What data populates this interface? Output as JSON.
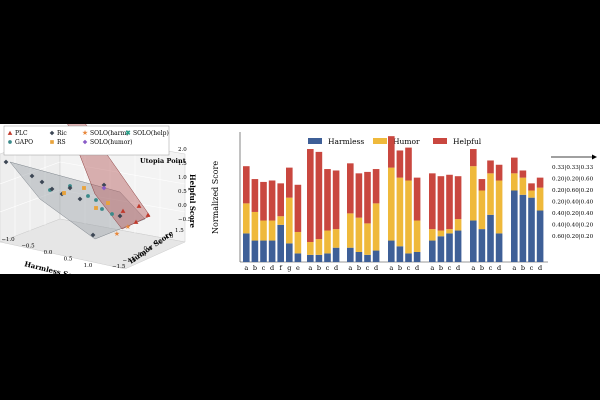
{
  "chart_data": [
    {
      "type": "scatter",
      "title": "",
      "xlabel": "Harmless Score",
      "ylabel": "Humor Score",
      "zlabel": "Helpful Score",
      "xticks": [
        "−1.0",
        "−0.5",
        "0.0",
        "0.5",
        "1.0"
      ],
      "yticks": [
        "−1.5",
        "−1.0",
        "−0.5",
        "0.0",
        "0.5",
        "1.0",
        "1.5"
      ],
      "zticks": [
        "−0.5",
        "0.0",
        "0.5",
        "1.0",
        "1.5",
        "2.0"
      ],
      "annotation": "Utopia Point",
      "legend": [
        {
          "label": "PLC",
          "color": "#c0392b",
          "marker": "triangle"
        },
        {
          "label": "GAPO",
          "color": "#3a8a8a",
          "marker": "circle"
        },
        {
          "label": "Ric",
          "color": "#3c4654",
          "marker": "diamond"
        },
        {
          "label": "RS",
          "color": "#e8a33c",
          "marker": "square"
        },
        {
          "label": "SOLO(harm)",
          "color": "#e8883c",
          "marker": "star"
        },
        {
          "label": "SOLO(humor)",
          "color": "#8a5cc8",
          "marker": "diamond"
        },
        {
          "label": "SOLO(help)",
          "color": "#2aa08a",
          "marker": "x"
        }
      ]
    },
    {
      "type": "bar",
      "stacked": true,
      "ylabel": "Normalized Score",
      "legend": [
        "Harmless",
        "Humor",
        "Helpful"
      ],
      "colors": {
        "Harmless": "#3e5f97",
        "Humor": "#efb93b",
        "Helpful": "#c9473f"
      },
      "groups": [
        {
          "categories": [
            "a",
            "b",
            "c",
            "d",
            "f",
            "g",
            "e"
          ],
          "harmless": [
            0.2,
            0.15,
            0.15,
            0.15,
            0.26,
            0.13,
            0.06
          ],
          "humor": [
            0.21,
            0.2,
            0.14,
            0.14,
            0.06,
            0.32,
            0.15
          ],
          "helpful": [
            0.26,
            0.23,
            0.27,
            0.28,
            0.23,
            0.21,
            0.33
          ]
        },
        {
          "categories": [
            "a",
            "b",
            "c",
            "d"
          ],
          "harmless": [
            0.05,
            0.05,
            0.06,
            0.1
          ],
          "humor": [
            0.09,
            0.11,
            0.16,
            0.13
          ],
          "helpful": [
            0.65,
            0.61,
            0.43,
            0.41
          ]
        },
        {
          "categories": [
            "a",
            "b",
            "c",
            "d"
          ],
          "harmless": [
            0.1,
            0.07,
            0.05,
            0.08
          ],
          "humor": [
            0.24,
            0.24,
            0.22,
            0.33
          ],
          "helpful": [
            0.35,
            0.31,
            0.36,
            0.24
          ]
        },
        {
          "categories": [
            "a",
            "b",
            "c",
            "d"
          ],
          "harmless": [
            0.15,
            0.11,
            0.06,
            0.07
          ],
          "humor": [
            0.51,
            0.48,
            0.51,
            0.22
          ],
          "helpful": [
            0.22,
            0.19,
            0.23,
            0.3
          ]
        },
        {
          "categories": [
            "a",
            "b",
            "c",
            "d"
          ],
          "harmless": [
            0.15,
            0.18,
            0.2,
            0.22
          ],
          "humor": [
            0.08,
            0.04,
            0.03,
            0.08
          ],
          "helpful": [
            0.39,
            0.38,
            0.38,
            0.3
          ]
        },
        {
          "categories": [
            "a",
            "b",
            "c",
            "d"
          ],
          "harmless": [
            0.29,
            0.23,
            0.33,
            0.2
          ],
          "humor": [
            0.38,
            0.27,
            0.29,
            0.37
          ],
          "helpful": [
            0.12,
            0.08,
            0.09,
            0.11
          ]
        },
        {
          "categories": [
            "a",
            "b",
            "c",
            "d"
          ],
          "harmless": [
            0.5,
            0.47,
            0.45,
            0.36
          ],
          "humor": [
            0.12,
            0.12,
            0.05,
            0.16
          ],
          "helpful": [
            0.11,
            0.05,
            0.05,
            0.07
          ]
        }
      ],
      "weights": [
        "0.33|0.33|0.33",
        "0.20|0.20|0.60",
        "0.20|0.60|0.20",
        "0.20|0.40|0.40",
        "0.40|0.20|0.40",
        "0.40|0.40|0.20",
        "0.60|0.20|0.20"
      ],
      "ylim": [
        0,
        0.8
      ]
    }
  ]
}
